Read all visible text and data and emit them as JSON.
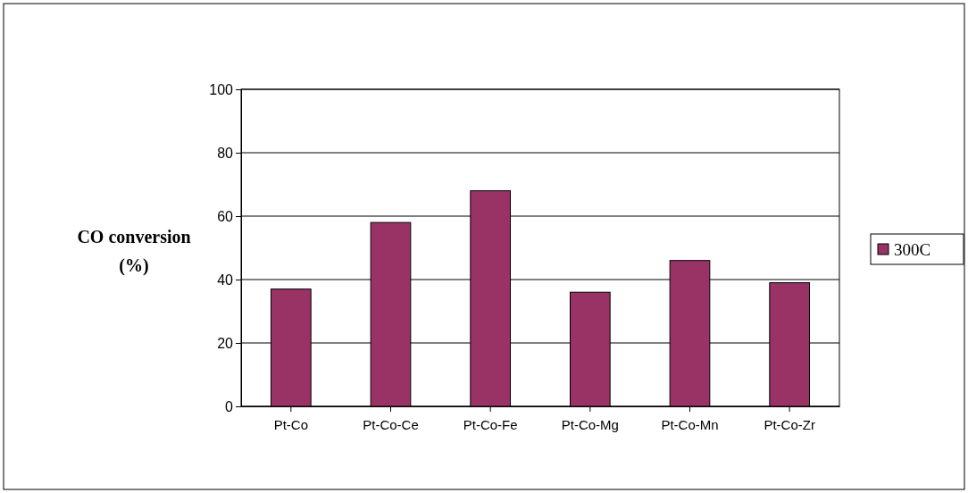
{
  "chart_data": {
    "type": "bar",
    "ylabel": "CO conversion (%)",
    "categories": [
      "Pt-Co",
      "Pt-Co-Ce",
      "Pt-Co-Fe",
      "Pt-Co-Mg",
      "Pt-Co-Mn",
      "Pt-Co-Zr"
    ],
    "series": [
      {
        "name": "300C",
        "color": "#993366",
        "values": [
          37,
          58,
          68,
          36,
          46,
          39
        ]
      }
    ],
    "ylim": [
      0,
      100
    ],
    "yticks": [
      0,
      20,
      40,
      60,
      80,
      100
    ],
    "grid": "y",
    "legend": "right"
  }
}
